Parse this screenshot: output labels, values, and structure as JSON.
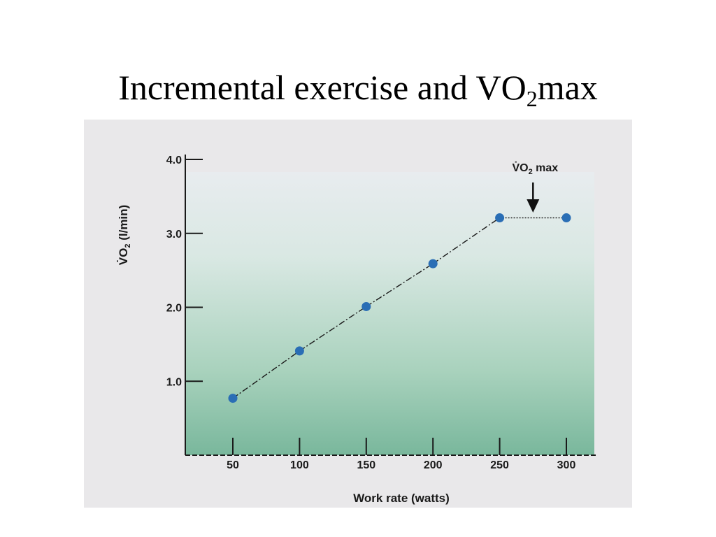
{
  "slide": {
    "title_main": "Incremental exercise and VO",
    "title_sub": "2",
    "title_end": "max"
  },
  "chart_data": {
    "type": "line",
    "title": "Incremental exercise and VO2max",
    "xlabel": "Work rate (watts)",
    "ylabel_main": "V̇O",
    "ylabel_sub": "2",
    "ylabel_unit": " (l/min)",
    "xlim": [
      25,
      325
    ],
    "ylim": [
      0,
      4.0
    ],
    "x_ticks": [
      50,
      100,
      150,
      200,
      250,
      300
    ],
    "y_ticks": [
      1.0,
      2.0,
      3.0,
      4.0
    ],
    "y_tick_labels": [
      "1.0",
      "2.0",
      "3.0",
      "4.0"
    ],
    "series": [
      {
        "x": [
          50,
          100,
          150,
          200,
          250,
          300
        ],
        "y": [
          0.77,
          1.41,
          2.01,
          2.59,
          3.21,
          3.21
        ]
      }
    ],
    "annotation": {
      "text_main": "V̇O",
      "text_sub": "2",
      "text_end": " max",
      "points_to_x": 275,
      "points_to_y": 3.21
    },
    "grid": false,
    "colors": {
      "point": "#2a6eb5",
      "line": "#1a1a1a",
      "band_top": "#e6ebee",
      "band_bottom": "#78b59a"
    }
  }
}
